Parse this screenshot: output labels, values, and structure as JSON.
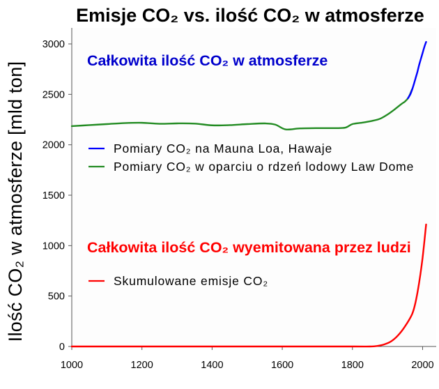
{
  "chart_data": {
    "type": "line",
    "title": "Emisje CO₂ vs. ilość CO₂ w atmosferze",
    "ylabel": "Ilość CO₂ w atmosferze [mld ton]",
    "xlim": [
      1000,
      2040
    ],
    "ylim": [
      0,
      3150
    ],
    "xticks": [
      1000,
      1200,
      1400,
      1600,
      1800,
      2000
    ],
    "yticks": [
      0,
      500,
      1000,
      1500,
      2000,
      2500,
      3000
    ],
    "grid": false,
    "legend": "upper-left",
    "annotations": [
      {
        "text": "Całkowita ilość CO₂ w atmosferze",
        "color": "#0000cc"
      },
      {
        "text": "Całkowita ilość CO₂ wyemitowana przez ludzi",
        "color": "#ff0000"
      }
    ],
    "series": [
      {
        "name": "Pomiary CO₂ na Mauna Loa, Hawaje",
        "color": "#0000ff",
        "x": [
          1958,
          1965,
          1970,
          1975,
          1980,
          1985,
          1990,
          1995,
          2000,
          2005,
          2010
        ],
        "y": [
          2460,
          2500,
          2545,
          2600,
          2660,
          2720,
          2790,
          2850,
          2910,
          2970,
          3020
        ]
      },
      {
        "name": "Pomiary CO₂ w oparciu o rdzeń lodowy Law Dome",
        "color": "#228b22",
        "x": [
          1000,
          1050,
          1100,
          1150,
          1200,
          1250,
          1300,
          1350,
          1400,
          1450,
          1500,
          1550,
          1580,
          1610,
          1650,
          1700,
          1750,
          1780,
          1800,
          1830,
          1860,
          1880,
          1900,
          1920,
          1940,
          1950,
          1960,
          1970
        ],
        "y": [
          2185,
          2195,
          2205,
          2215,
          2218,
          2208,
          2212,
          2210,
          2193,
          2195,
          2205,
          2212,
          2200,
          2152,
          2162,
          2165,
          2165,
          2170,
          2205,
          2220,
          2240,
          2260,
          2300,
          2350,
          2405,
          2430,
          2470,
          2550
        ]
      },
      {
        "name": "Skumulowane emisje CO₂",
        "color": "#ff0000",
        "x": [
          1000,
          1200,
          1400,
          1600,
          1800,
          1850,
          1870,
          1890,
          1910,
          1930,
          1950,
          1970,
          1980,
          1990,
          2000,
          2010
        ],
        "y": [
          0,
          0,
          0,
          0,
          0,
          0,
          5,
          20,
          50,
          110,
          200,
          320,
          440,
          630,
          880,
          1210
        ]
      }
    ]
  }
}
